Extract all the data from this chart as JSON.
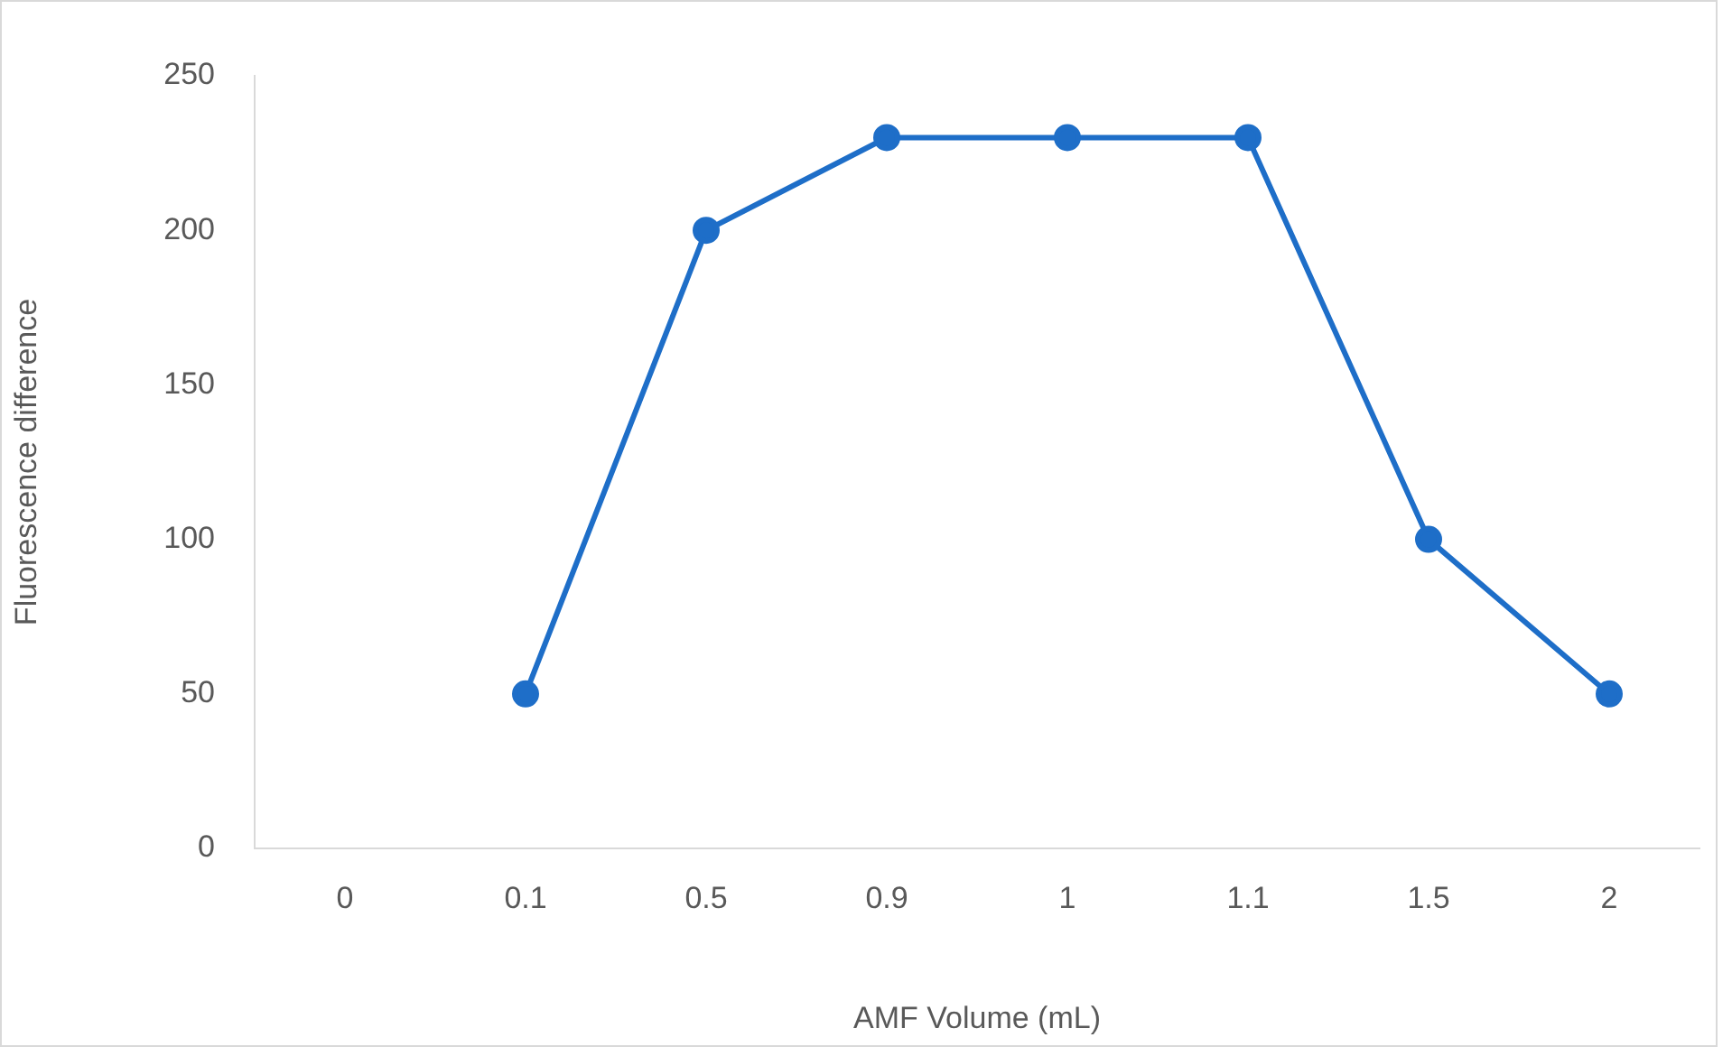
{
  "chart_data": {
    "type": "line",
    "xlabel": "AMF Volume (mL)",
    "ylabel": "Fluorescence difference",
    "categories": [
      "0",
      "0.1",
      "0.5",
      "0.9",
      "1",
      "1.1",
      "1.5",
      "2"
    ],
    "series": [
      {
        "color": "#1e6ec8",
        "values": [
          null,
          50,
          200,
          230,
          230,
          230,
          100,
          50
        ]
      }
    ],
    "ylim": [
      0,
      250
    ],
    "yticks": [
      0,
      50,
      100,
      150,
      200,
      250
    ],
    "marker": "circle",
    "line_style": "solid",
    "legend": false
  }
}
